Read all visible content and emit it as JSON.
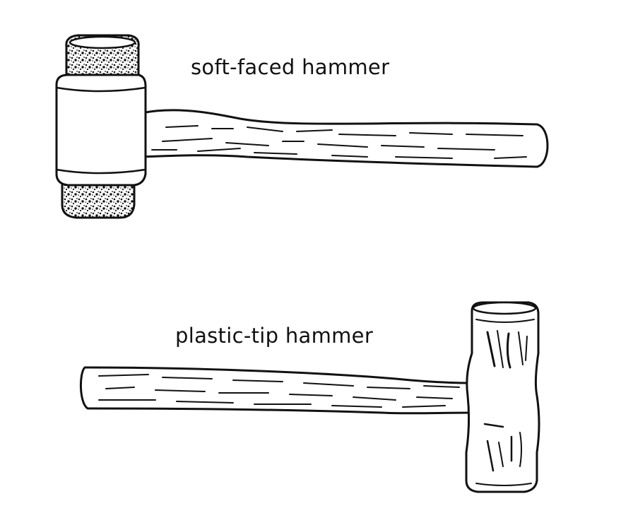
{
  "labels": {
    "soft_faced": "soft-faced hammer",
    "plastic_tip": "plastic-tip hammer"
  },
  "colors": {
    "ink": "#111111",
    "background": "#ffffff"
  }
}
